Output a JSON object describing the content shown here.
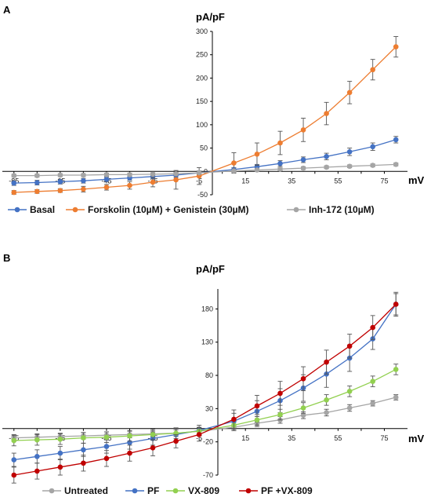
{
  "colors": {
    "blue": "#4472c4",
    "orange": "#ed7d31",
    "gray": "#a5a5a5",
    "green": "#92d050",
    "red": "#c00000",
    "axis": "#000000",
    "errorbar": "#555555"
  },
  "chart_data": [
    {
      "type": "line",
      "panel": "A",
      "ylabel": "pA/pF",
      "xlabel": "mV",
      "x": [
        -85,
        -75,
        -65,
        -55,
        -45,
        -35,
        -25,
        -15,
        -5,
        10,
        20,
        30,
        40,
        50,
        60,
        70,
        80
      ],
      "xlim": [
        -90,
        85
      ],
      "ylim": [
        -50,
        300
      ],
      "x_tick_labels": [
        "-85",
        "-65",
        "-45",
        "-25",
        "-5",
        "15",
        "35",
        "55",
        "75"
      ],
      "y_tick_labels": [
        "300",
        "250",
        "200",
        "150",
        "100",
        "50",
        "0",
        "-50"
      ],
      "series": [
        {
          "name": "Basal",
          "color": "#4472c4",
          "values": [
            -25,
            -24,
            -22,
            -20,
            -17,
            -14,
            -11,
            -8,
            -3,
            4,
            10,
            17,
            25,
            32,
            42,
            53,
            68
          ],
          "errors": [
            5,
            5,
            5,
            5,
            5,
            5,
            5,
            5,
            4,
            4,
            5,
            6,
            6,
            7,
            8,
            8,
            7
          ]
        },
        {
          "name": "Forskolin (10µM) + Genistein (30µM)",
          "color": "#ed7d31",
          "values": [
            -45,
            -43,
            -41,
            -38,
            -34,
            -30,
            -23,
            -18,
            -10,
            18,
            37,
            61,
            89,
            124,
            169,
            218,
            267
          ],
          "errors": [
            4,
            4,
            4,
            6,
            6,
            8,
            10,
            20,
            18,
            22,
            24,
            25,
            25,
            24,
            24,
            22,
            22
          ]
        },
        {
          "name": "Inh-172 (10µM)",
          "color": "#a5a5a5",
          "values": [
            -9,
            -9,
            -8,
            -8,
            -7,
            -7,
            -6,
            -5,
            -3,
            1,
            3,
            5,
            7,
            9,
            11,
            13,
            15
          ],
          "errors": [
            3,
            3,
            3,
            3,
            3,
            3,
            3,
            3,
            3,
            3,
            3,
            3,
            3,
            3,
            3,
            3,
            3
          ]
        }
      ]
    },
    {
      "type": "line",
      "panel": "B",
      "ylabel": "pA/pF",
      "xlabel": "mV",
      "x": [
        -85,
        -75,
        -65,
        -55,
        -45,
        -35,
        -25,
        -15,
        -5,
        10,
        20,
        30,
        40,
        50,
        60,
        70,
        80
      ],
      "xlim": [
        -90,
        85
      ],
      "ylim": [
        -70,
        210
      ],
      "x_tick_labels": [
        "-85",
        "-65",
        "-45",
        "-25",
        "-5",
        "15",
        "35",
        "55",
        "75"
      ],
      "y_tick_labels": [
        "180",
        "130",
        "80",
        "30",
        "-20",
        "-70"
      ],
      "series": [
        {
          "name": "Untreated",
          "color": "#a5a5a5",
          "values": [
            -14,
            -13,
            -12,
            -11,
            -10,
            -9,
            -8,
            -7,
            -4,
            2,
            8,
            13,
            20,
            24,
            31,
            38,
            47
          ],
          "errors": [
            5,
            5,
            5,
            5,
            5,
            5,
            5,
            5,
            5,
            5,
            5,
            5,
            5,
            5,
            5,
            4,
            4
          ]
        },
        {
          "name": "PF",
          "color": "#4472c4",
          "values": [
            -47,
            -42,
            -37,
            -32,
            -27,
            -21,
            -15,
            -9,
            -3,
            11,
            26,
            42,
            61,
            82,
            106,
            135,
            187
          ],
          "errors": [
            10,
            10,
            10,
            10,
            10,
            10,
            10,
            10,
            8,
            12,
            16,
            18,
            20,
            20,
            20,
            16,
            18
          ]
        },
        {
          "name": "VX-809",
          "color": "#92d050",
          "values": [
            -18,
            -17,
            -16,
            -14,
            -13,
            -11,
            -9,
            -7,
            -4,
            5,
            13,
            21,
            31,
            43,
            56,
            71,
            89
          ],
          "errors": [
            8,
            8,
            8,
            8,
            8,
            8,
            8,
            8,
            6,
            8,
            8,
            8,
            8,
            8,
            8,
            8,
            8
          ]
        },
        {
          "name": "PF +VX-809",
          "color": "#c00000",
          "values": [
            -70,
            -64,
            -58,
            -52,
            -45,
            -37,
            -29,
            -19,
            -9,
            14,
            34,
            53,
            75,
            100,
            124,
            152,
            187
          ],
          "errors": [
            12,
            12,
            12,
            12,
            12,
            12,
            12,
            10,
            10,
            14,
            16,
            18,
            18,
            18,
            18,
            18,
            16
          ]
        }
      ]
    }
  ]
}
